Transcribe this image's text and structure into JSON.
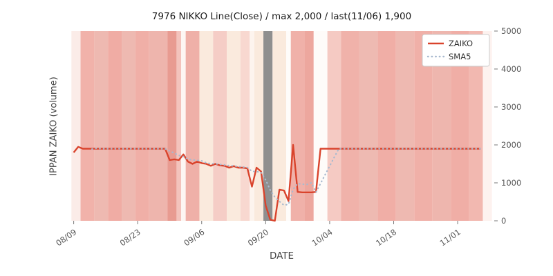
{
  "chart_data": {
    "type": "line",
    "title": "7976 NIKKO Line(Close) / max 2,000 / last(11/06) 1,900",
    "xlabel": "DATE",
    "ylabel": "IPPAN ZAIKO (volume)",
    "ylim": [
      0,
      5000
    ],
    "y_ticks": [
      0,
      1000,
      2000,
      3000,
      4000,
      5000
    ],
    "x_tick_labels": [
      "08/09",
      "08/23",
      "09/06",
      "09/20",
      "10/04",
      "10/18",
      "11/01"
    ],
    "x_tick_indices": [
      0,
      14,
      28,
      42,
      56,
      70,
      84
    ],
    "x_index_range": [
      -1,
      92
    ],
    "start_date": "08/09",
    "last_date": "11/06",
    "last_value": 1900,
    "max_value": 2000,
    "grid": false,
    "legend_position": "upper right",
    "series": [
      {
        "name": "ZAIKO",
        "color": "#d9432c",
        "style": "solid",
        "width": 2.4,
        "values": [
          1800,
          1950,
          1900,
          1900,
          1900,
          1900,
          1900,
          1900,
          1900,
          1900,
          1900,
          1900,
          1900,
          1900,
          1900,
          1900,
          1900,
          1900,
          1900,
          1900,
          1900,
          1600,
          1620,
          1600,
          1750,
          1560,
          1500,
          1560,
          1520,
          1500,
          1450,
          1500,
          1460,
          1450,
          1400,
          1440,
          1400,
          1400,
          1380,
          900,
          1400,
          1300,
          400,
          30,
          0,
          820,
          800,
          520,
          2000,
          760,
          750,
          750,
          750,
          760,
          1900,
          1900,
          1900,
          1900,
          1900,
          1900,
          1900,
          1900,
          1900,
          1900,
          1900,
          1900,
          1900,
          1900,
          1900,
          1900,
          1900,
          1900,
          1900,
          1900,
          1900,
          1900,
          1900,
          1900,
          1900,
          1900,
          1900,
          1900,
          1900,
          1900,
          1900,
          1900,
          1900,
          1900,
          1900,
          1900
        ]
      },
      {
        "name": "SMA5",
        "color": "#a9bacf",
        "style": "dotted",
        "width": 2.2,
        "derived": "sma",
        "window": 5,
        "source": "ZAIKO"
      }
    ],
    "background_bands": [
      [
        0,
        1,
        "#fbece8"
      ],
      [
        2,
        4,
        "#f1b2aa"
      ],
      [
        5,
        7,
        "#eeb9b1"
      ],
      [
        8,
        10,
        "#f0aca4"
      ],
      [
        11,
        13,
        "#eeb9b1"
      ],
      [
        14,
        16,
        "#f0afa7"
      ],
      [
        17,
        20,
        "#eeb5ad"
      ],
      [
        21,
        22,
        "#e89b91"
      ],
      [
        23,
        23,
        "#f3c3bc"
      ],
      [
        24,
        24,
        "#fdf6f3"
      ],
      [
        25,
        27,
        "#efb0a8"
      ],
      [
        28,
        30,
        "#faeadd"
      ],
      [
        31,
        33,
        "#f5cdc6"
      ],
      [
        34,
        36,
        "#faeadd"
      ],
      [
        37,
        38,
        "#f8d8d0"
      ],
      [
        39,
        39,
        "#fdf4ee"
      ],
      [
        40,
        41,
        "#faeadd"
      ],
      [
        42,
        43,
        "#8f8f8f"
      ],
      [
        44,
        46,
        "#faeadd"
      ],
      [
        47,
        47,
        "#fefcfa"
      ],
      [
        48,
        50,
        "#f0b1a9"
      ],
      [
        51,
        52,
        "#eda79e"
      ],
      [
        53,
        55,
        "#fefbf9"
      ],
      [
        56,
        58,
        "#f5cac3"
      ],
      [
        59,
        62,
        "#f0b2aa"
      ],
      [
        63,
        66,
        "#eebab2"
      ],
      [
        67,
        70,
        "#f0aea6"
      ],
      [
        71,
        74,
        "#eeb9b1"
      ],
      [
        75,
        78,
        "#f0b0a8"
      ],
      [
        79,
        82,
        "#eeb6ae"
      ],
      [
        83,
        86,
        "#f0aea6"
      ],
      [
        87,
        89,
        "#f2b8b0"
      ],
      [
        90,
        91,
        "#fdf2ef"
      ]
    ],
    "colors": {
      "tick_label": "#555555",
      "tick_mark": "#777777",
      "title": "#1a1a1a",
      "axis_label": "#444444",
      "legend_border": "#cccccc",
      "legend_bg": "#ffffff",
      "plot_bg": "#ffffff"
    }
  }
}
